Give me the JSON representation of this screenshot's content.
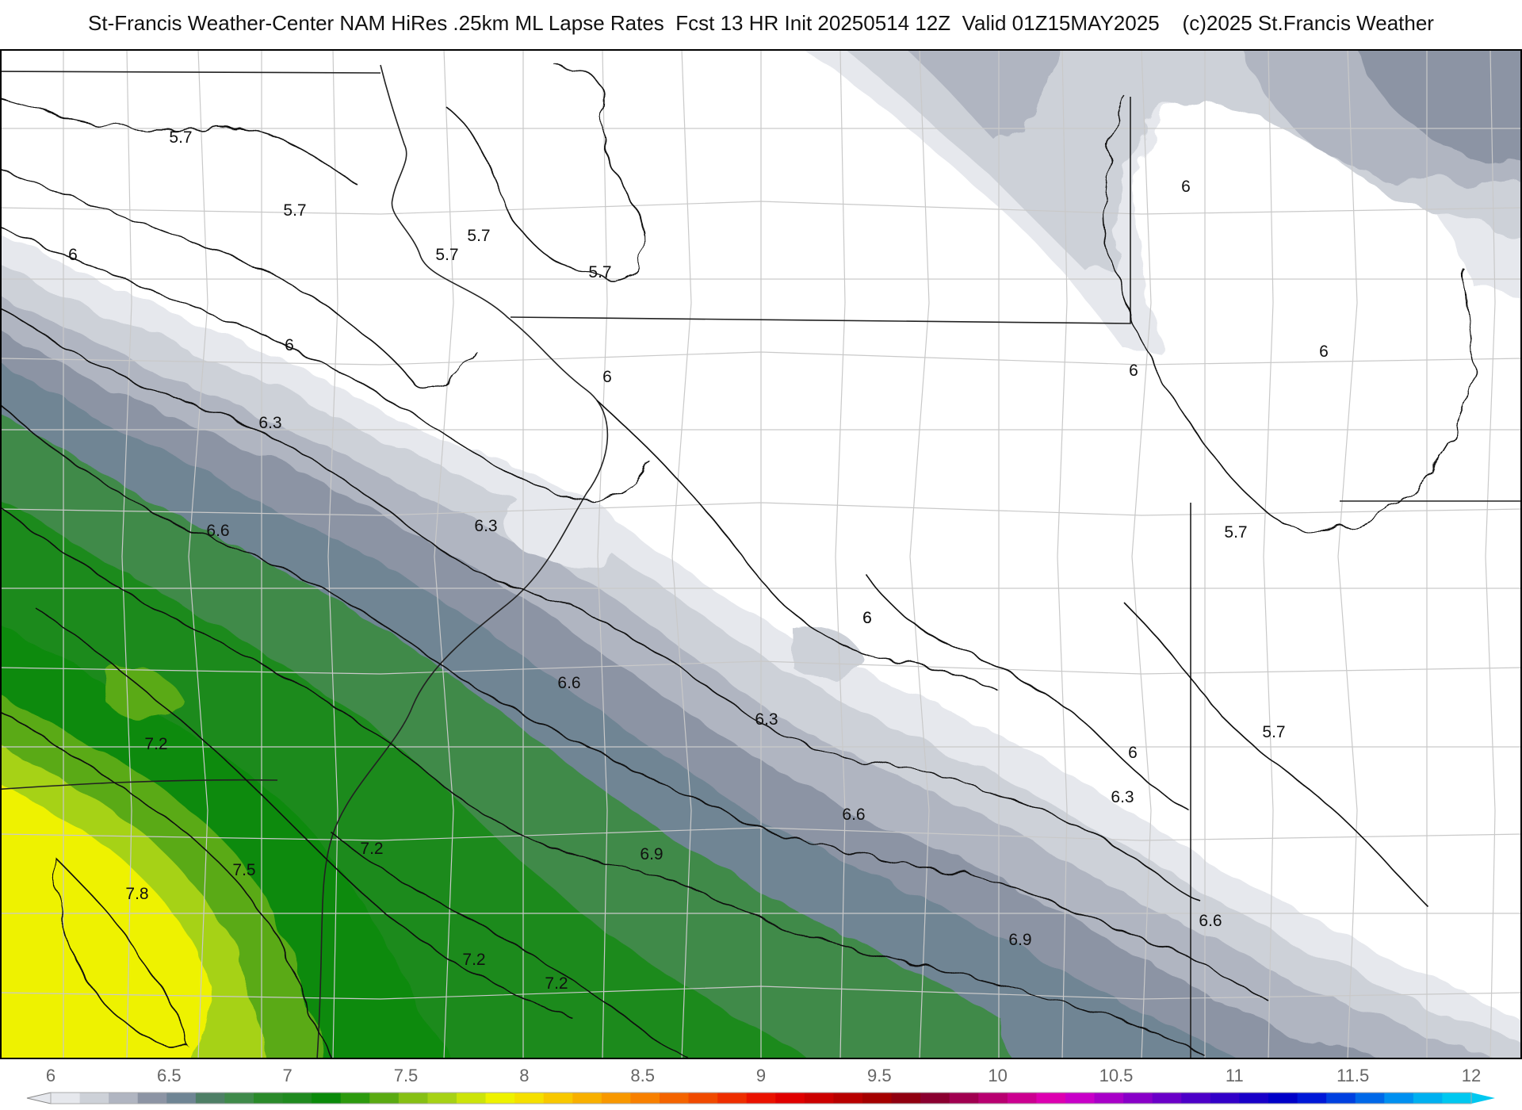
{
  "header": {
    "title": "St-Francis Weather-Center NAM HiRes .25km ML Lapse Rates  Fcst 13 HR Init 20250514 12Z  Valid 01Z15MAY2025    (c)2025 St.Francis Weather"
  },
  "map": {
    "field": "ML Lapse Rates",
    "fill_colors": {
      "ge_6.0": "#e6e8ed",
      "ge_6.2": "#cdd1d8",
      "ge_6.4": "#b0b5c1",
      "ge_6.6": "#8c94a4",
      "ge_6.8": "#6f8594",
      "ge_7.0": "#3f8a4a",
      "ge_7.2": "#1f8a1f",
      "ge_7.4": "#0a8a0a",
      "ge_7.6": "#5aaa12",
      "ge_7.8": "#a6d215",
      "ge_8.0": "#eef200"
    },
    "contour_labels": [
      {
        "text": "5.7"
      },
      {
        "text": "5.7"
      },
      {
        "text": "5.7"
      },
      {
        "text": "5.7"
      },
      {
        "text": "5.7"
      },
      {
        "text": "5.7"
      },
      {
        "text": "5.7"
      },
      {
        "text": "6"
      },
      {
        "text": "6"
      },
      {
        "text": "6"
      },
      {
        "text": "6"
      },
      {
        "text": "6"
      },
      {
        "text": "6"
      },
      {
        "text": "6"
      },
      {
        "text": "6"
      },
      {
        "text": "6"
      },
      {
        "text": "6.3"
      },
      {
        "text": "6.3"
      },
      {
        "text": "6.3"
      },
      {
        "text": "6.3"
      },
      {
        "text": "6.6"
      },
      {
        "text": "6.6"
      },
      {
        "text": "6.6"
      },
      {
        "text": "6.6"
      },
      {
        "text": "6.9"
      },
      {
        "text": "6.9"
      },
      {
        "text": "7.2"
      },
      {
        "text": "7.2"
      },
      {
        "text": "7.2"
      },
      {
        "text": "7.2"
      },
      {
        "text": "7.5"
      },
      {
        "text": "7.8"
      }
    ]
  },
  "colorbar": {
    "ticks": [
      "6",
      "6.5",
      "7",
      "7.5",
      "8",
      "8.5",
      "9",
      "9.5",
      "10",
      "10.5",
      "11",
      "11.5",
      "12"
    ],
    "colors": [
      "#e6e8ed",
      "#cdd1d8",
      "#b0b5c1",
      "#8c94a4",
      "#6f8594",
      "#4e7f66",
      "#3f8a4a",
      "#2a8a2a",
      "#1f8a1f",
      "#0a8a0a",
      "#2c9a0e",
      "#5aaa12",
      "#86c014",
      "#a6d215",
      "#cce40a",
      "#eef200",
      "#f5e000",
      "#f8c800",
      "#f8b000",
      "#f89800",
      "#f88000",
      "#f46400",
      "#f04a00",
      "#ee2e00",
      "#ea1200",
      "#e00000",
      "#cc0000",
      "#b80000",
      "#a40000",
      "#900010",
      "#8a0030",
      "#a00050",
      "#b80070",
      "#cc0090",
      "#dd00b0",
      "#c800c8",
      "#a800c8",
      "#8800c8",
      "#6a00c8",
      "#4c00c8",
      "#3200c8",
      "#1800c8",
      "#0000c8",
      "#0018d8",
      "#0040e0",
      "#0068e8",
      "#0090f0",
      "#00b0f0",
      "#00c8f0"
    ]
  }
}
